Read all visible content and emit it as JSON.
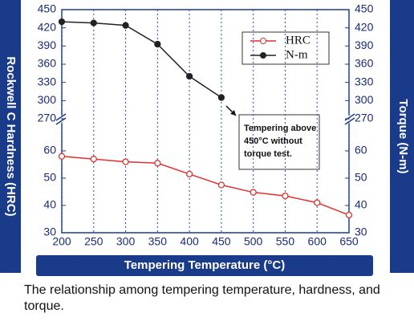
{
  "chart_data": {
    "type": "line",
    "caption": "The relationship among tempering temperature, hardness, and torque.",
    "xlabel": "Tempering Temperature (°C)",
    "ylabel": "Rockwell C Hardness (HRC)",
    "y2label": "Torque (N-m)",
    "annotation": [
      "Tempering above",
      "450°C  without",
      "torque test."
    ],
    "x": [
      200,
      250,
      300,
      350,
      400,
      450,
      500,
      550,
      600,
      650
    ],
    "xlim": [
      200,
      650
    ],
    "xticks": [
      200,
      250,
      300,
      350,
      400,
      450,
      500,
      550,
      600,
      650
    ],
    "ylim": [
      30,
      60
    ],
    "yticks": [
      30,
      40,
      50,
      60
    ],
    "y2lim": [
      270,
      450
    ],
    "y2ticks": [
      270,
      300,
      330,
      360,
      390,
      420,
      450
    ],
    "grid": true,
    "series": [
      {
        "name": "HRC",
        "color": "#e03030",
        "values": [
          58,
          57,
          56,
          55.5,
          51.5,
          47.5,
          44.8,
          43.5,
          41,
          36.5
        ]
      },
      {
        "name": "N-m",
        "color": "#222222",
        "axis": "y2",
        "values": [
          430,
          428,
          424,
          393,
          340,
          305,
          null,
          null,
          null,
          null
        ]
      }
    ]
  }
}
